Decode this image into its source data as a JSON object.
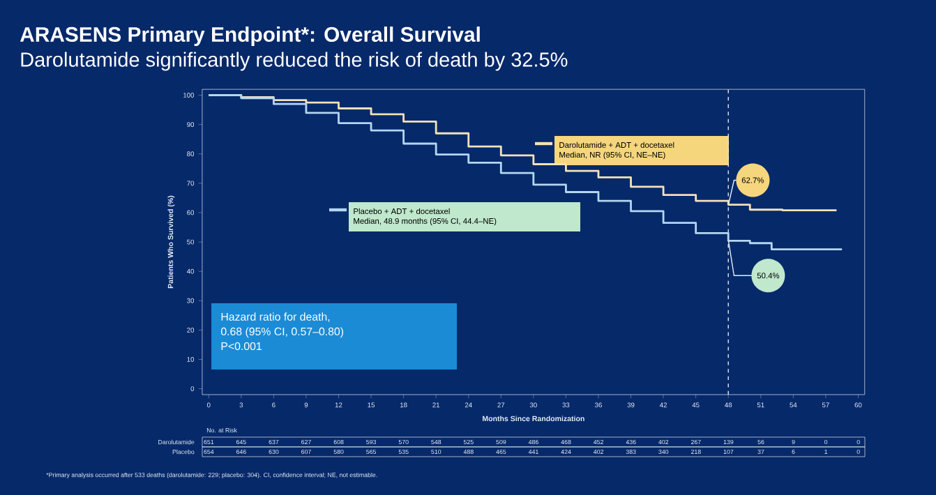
{
  "chart_data": {
    "type": "step",
    "title": "ARASENS Primary Endpoint*: Overall Survival",
    "subtitle": "Darolutamide significantly reduced the risk of death by 32.5%",
    "xlabel": "Months Since Randomization",
    "ylabel": "Patients Who Survived (%)",
    "xlim": [
      -0.6,
      60.6
    ],
    "ylim": [
      -2,
      102
    ],
    "xticks": [
      0,
      3,
      6,
      9,
      12,
      15,
      18,
      21,
      24,
      27,
      30,
      33,
      36,
      39,
      42,
      45,
      48,
      51,
      54,
      57,
      60
    ],
    "yticks": [
      0,
      10,
      20,
      30,
      40,
      50,
      60,
      70,
      80,
      90,
      100
    ],
    "grid": false,
    "legend": "top",
    "marker": "none",
    "line_style": "solid",
    "series": [
      {
        "name": "Darolutamide + ADT + docetaxel",
        "color": "#f3e2b8",
        "x": [
          0,
          3,
          6,
          9,
          12,
          15,
          18,
          21,
          24,
          27,
          30,
          33,
          36,
          39,
          42,
          45,
          48,
          50,
          53,
          58
        ],
        "values": [
          100,
          99.3,
          98.3,
          97.5,
          95.5,
          93.5,
          91,
          87,
          82.5,
          79.5,
          76.5,
          74.2,
          72,
          68.8,
          66,
          64,
          62.7,
          61,
          60.8,
          60.8
        ]
      },
      {
        "name": "Placebo + ADT + docetaxel",
        "color": "#b4d6f2",
        "x": [
          0,
          3,
          6,
          9,
          12,
          15,
          18,
          21,
          24,
          27,
          30,
          33,
          36,
          39,
          42,
          45,
          48,
          50,
          52,
          58.5
        ],
        "values": [
          100,
          99,
          97,
          94,
          90.5,
          88,
          83.5,
          79.8,
          77,
          73.5,
          69.5,
          67,
          64,
          60.5,
          56.5,
          53,
          50.4,
          49.6,
          47.5,
          47.5
        ]
      }
    ],
    "ref_lines": [
      {
        "axis": "x",
        "value": 48,
        "label": null,
        "color": "#dfe6f2",
        "line_style": "dashed"
      }
    ],
    "annotations": [
      "Median, NR (95% CI, NE–NE)",
      "Median, 48.9 months (95% CI, 44.4–NE)",
      {
        "text": "62.7%",
        "x": 48,
        "y": 62.7
      },
      {
        "text": "50.4%",
        "x": 48,
        "y": 50.4
      },
      "Hazard ratio for death,",
      "0.68 (95% CI, 0.57–0.80)",
      "P<0.001",
      "No. at Risk",
      "Darolutamide",
      "Placebo",
      "651",
      "645",
      "637",
      "627",
      "608",
      "593",
      "570",
      "548",
      "525",
      "509",
      "486",
      "468",
      "452",
      "436",
      "402",
      "267",
      "139",
      "56",
      "9",
      "0",
      "0",
      "654",
      "646",
      "630",
      "607",
      "580",
      "565",
      "535",
      "510",
      "488",
      "465",
      "441",
      "424",
      "402",
      "383",
      "340",
      "218",
      "107",
      "37",
      "6",
      "1",
      "0",
      "*Primary analysis occurred after 533 deaths (darolutamide: 229; placebo: 304). CI, confidence interval; NE, not estimable."
    ]
  }
}
